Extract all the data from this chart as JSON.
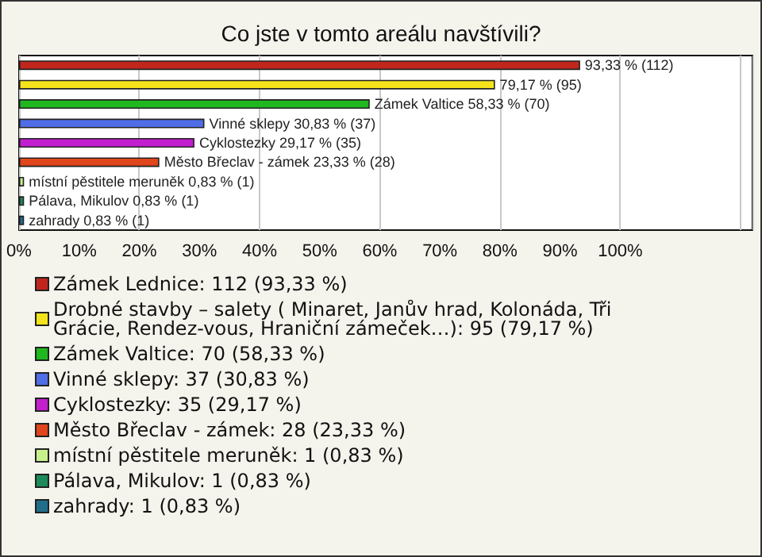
{
  "chart_data": {
    "type": "bar",
    "orientation": "horizontal",
    "stacked": true,
    "title": "Co jste v tomto areálu navštívili?",
    "categories": [
      null,
      null,
      null,
      null,
      null,
      null,
      null,
      null,
      null
    ],
    "xlim": [
      0,
      122
    ],
    "xticks": [
      {
        "value": 0,
        "label": "0%"
      },
      {
        "value": 10,
        "label": "10%"
      },
      {
        "value": 20,
        "label": "20%"
      },
      {
        "value": 30,
        "label": "30%"
      },
      {
        "value": 40,
        "label": "40%"
      },
      {
        "value": 50,
        "label": "50%"
      },
      {
        "value": 60,
        "label": "60%"
      },
      {
        "value": 70,
        "label": "70%"
      },
      {
        "value": 80,
        "label": "80%"
      },
      {
        "value": 90,
        "label": "90%"
      },
      {
        "value": 100,
        "label": "100%"
      }
    ],
    "grid": "x",
    "legend": "bottom",
    "series": [
      {
        "name": "Zámek Lednice: 112 (93,33 %)",
        "color": "#c0261c",
        "values": [
          93.33,
          null,
          null,
          null,
          null,
          null,
          null,
          null,
          null
        ],
        "value_labels": [
          "93,33 % (112)",
          null,
          null,
          null,
          null,
          null,
          null,
          null,
          null
        ]
      },
      {
        "name": "Drobné stavby – salety ( Minaret, Janův hrad, Kolonáda, Tři Grácie, Rendez-vous, Hraniční zámeček…): 95 (79,17 %)",
        "color": "#f5e31b",
        "values": [
          null,
          79.17,
          null,
          null,
          null,
          null,
          null,
          null,
          null
        ],
        "value_labels": [
          null,
          "79,17 % (95)",
          null,
          null,
          null,
          null,
          null,
          null,
          null
        ]
      },
      {
        "name": "Zámek Valtice: 70 (58,33 %)",
        "color": "#1fb81f",
        "values": [
          null,
          null,
          58.33,
          null,
          null,
          null,
          null,
          null,
          null
        ],
        "value_labels": [
          null,
          null,
          "Zámek Valtice 58,33 % (70)",
          null,
          null,
          null,
          null,
          null,
          null
        ]
      },
      {
        "name": "Vinné sklepy: 37 (30,83 %)",
        "color": "#4f6de6",
        "values": [
          null,
          null,
          null,
          30.83,
          null,
          null,
          null,
          null,
          null
        ],
        "value_labels": [
          null,
          null,
          null,
          "Vinné sklepy 30,83 % (37)",
          null,
          null,
          null,
          null,
          null
        ]
      },
      {
        "name": "Cyklostezky: 35 (29,17 %)",
        "color": "#c21fcf",
        "values": [
          null,
          null,
          null,
          null,
          29.17,
          null,
          null,
          null,
          null
        ],
        "value_labels": [
          null,
          null,
          null,
          null,
          "Cyklostezky 29,17 % (35)",
          null,
          null,
          null,
          null
        ]
      },
      {
        "name": "Město Břeclav - zámek: 28 (23,33 %)",
        "color": "#e0451b",
        "values": [
          null,
          null,
          null,
          null,
          null,
          23.33,
          null,
          null,
          null
        ],
        "value_labels": [
          null,
          null,
          null,
          null,
          null,
          "Město Břeclav - zámek 23,33 % (28)",
          null,
          null,
          null
        ]
      },
      {
        "name": "místní pěstitele meruněk: 1 (0,83 %)",
        "color": "#c8f08c",
        "values": [
          null,
          null,
          null,
          null,
          null,
          null,
          0.83,
          null,
          null
        ],
        "value_labels": [
          null,
          null,
          null,
          null,
          null,
          null,
          "místní pěstitele meruněk 0,83 % (1)",
          null,
          null
        ]
      },
      {
        "name": "Pálava, Mikulov: 1 (0,83 %)",
        "color": "#1d8a5a",
        "values": [
          null,
          null,
          null,
          null,
          null,
          null,
          null,
          0.83,
          null
        ],
        "value_labels": [
          null,
          null,
          null,
          null,
          null,
          null,
          null,
          "Pálava, Mikulov 0,83 % (1)",
          null
        ]
      },
      {
        "name": "zahrady: 1 (0,83 %)",
        "color": "#1f6f8a",
        "values": [
          null,
          null,
          null,
          null,
          null,
          null,
          null,
          null,
          0.83
        ],
        "value_labels": [
          null,
          null,
          null,
          null,
          null,
          null,
          null,
          null,
          "zahrady 0,83 % (1)"
        ]
      }
    ]
  }
}
